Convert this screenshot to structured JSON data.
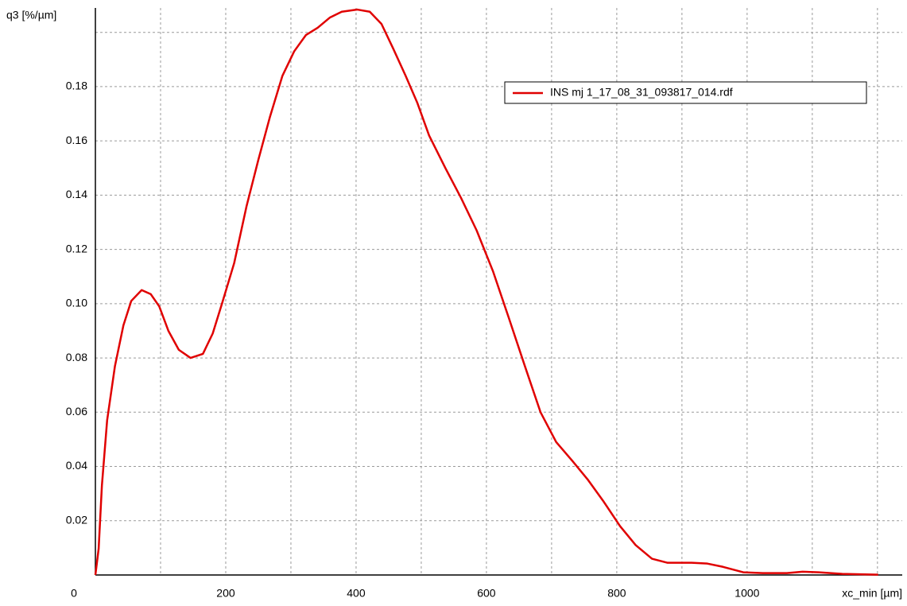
{
  "chart_data": {
    "type": "line",
    "y_label": "q3 [%/µm]",
    "x_label": "xc_min [µm]",
    "xlim": [
      0,
      1238
    ],
    "ylim": [
      0,
      0.209
    ],
    "xticks": [
      0,
      200,
      400,
      600,
      800,
      1000
    ],
    "x_minor_grid": [
      100,
      300,
      500,
      700,
      900,
      1100,
      1200
    ],
    "yticks": [
      0.02,
      0.04,
      0.06,
      0.08,
      {
        "value": 0.1,
        "label": "0.10"
      },
      0.12,
      0.14,
      0.16,
      0.18
    ],
    "y_minor_grid": [
      0.2
    ],
    "grid": true,
    "legend": "top-right",
    "x": [
      0,
      5,
      10,
      18,
      30,
      43,
      55,
      71,
      85,
      98,
      112,
      128,
      146,
      165,
      180,
      195,
      213,
      232,
      250,
      268,
      287,
      305,
      323,
      341,
      360,
      378,
      402,
      421,
      439,
      457,
      476,
      494,
      512,
      537,
      561,
      585,
      610,
      634,
      659,
      683,
      707,
      732,
      756,
      780,
      805,
      829,
      854,
      878,
      915,
      939,
      963,
      994,
      1024,
      1061,
      1085,
      1110,
      1146,
      1201
    ],
    "series": [
      {
        "name": "INS  mj 1_17_08_31_093817_014.rdf",
        "color": "#e00000",
        "values": [
          0,
          0.0097,
          0.033,
          0.057,
          0.077,
          0.092,
          0.101,
          0.105,
          0.1035,
          0.099,
          0.09,
          0.083,
          0.08,
          0.0815,
          0.089,
          0.1006,
          0.115,
          0.136,
          0.153,
          0.169,
          0.184,
          0.193,
          0.199,
          0.2017,
          0.2055,
          0.2076,
          0.2084,
          0.2076,
          0.2031,
          0.194,
          0.184,
          0.174,
          0.162,
          0.15,
          0.139,
          0.127,
          0.112,
          0.095,
          0.077,
          0.06,
          0.049,
          0.042,
          0.035,
          0.027,
          0.018,
          0.011,
          0.006,
          0.0045,
          0.0045,
          0.0042,
          0.003,
          0.001,
          0.0007,
          0.0007,
          0.0012,
          0.001,
          0.0004,
          0.0001
        ]
      }
    ]
  }
}
